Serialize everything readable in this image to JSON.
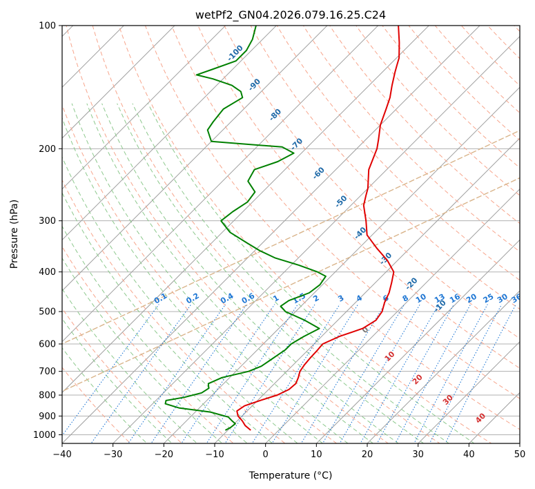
{
  "chart_data": {
    "type": "line",
    "chart_kind": "skew-t log-p",
    "title": "wetPf2_GN04.2026.079.16.25.C24",
    "xlabel": "Temperature (°C)",
    "ylabel": "Pressure (hPa)",
    "xlim": [
      -40,
      50
    ],
    "ylim": [
      1050,
      100
    ],
    "y_scale": "log",
    "grid": true,
    "x_ticks": [
      -40,
      -30,
      -20,
      -10,
      0,
      10,
      20,
      30,
      40,
      50
    ],
    "y_ticks": [
      100,
      200,
      300,
      400,
      500,
      600,
      700,
      800,
      900,
      1000
    ],
    "x_tick_labels": [
      "−40",
      "−30",
      "−20",
      "−10",
      "0",
      "10",
      "20",
      "30",
      "40",
      "50"
    ],
    "y_tick_labels": [
      "100",
      "200",
      "300",
      "400",
      "500",
      "600",
      "700",
      "800",
      "900",
      "1000"
    ],
    "colors": {
      "temperature": "#e00000",
      "dewpoint": "#008000",
      "isotherm": "#a0a0a0",
      "dry_adiabat": "#f7a58c",
      "moist_adiabat": "#8cc88c",
      "mixing_ratio": "#1f77d4",
      "isohume_labels": "#1f6aa8",
      "theta_labels": "#d43030",
      "aux_curve": "#d9b48a"
    },
    "series": [
      {
        "key": "temperature",
        "pressure": [
          975,
          950,
          925,
          900,
          875,
          850,
          825,
          800,
          775,
          750,
          725,
          700,
          675,
          650,
          625,
          600,
          575,
          550,
          525,
          500,
          475,
          450,
          425,
          400,
          375,
          350,
          325,
          300,
          275,
          260,
          250,
          225,
          200,
          190,
          175,
          160,
          150,
          140,
          130,
          125,
          120,
          110,
          100
        ],
        "temperature": [
          -5.5,
          -7.5,
          -9.0,
          -10.8,
          -12.0,
          -11.5,
          -9.5,
          -7.2,
          -6.0,
          -5.8,
          -6.5,
          -7.4,
          -7.8,
          -8.0,
          -8.1,
          -8.3,
          -6.5,
          -3.5,
          -2.5,
          -3.0,
          -4.3,
          -5.3,
          -6.8,
          -8.5,
          -12.0,
          -16.5,
          -21.0,
          -24.0,
          -27.5,
          -29.0,
          -30.0,
          -33.5,
          -36.0,
          -37.5,
          -40.0,
          -42.0,
          -43.5,
          -45.5,
          -47.5,
          -48.5,
          -49.5,
          -52.5,
          -56.0
        ]
      },
      {
        "key": "dewpoint",
        "pressure": [
          975,
          960,
          940,
          925,
          905,
          880,
          860,
          840,
          825,
          810,
          790,
          770,
          750,
          725,
          700,
          680,
          660,
          640,
          620,
          600,
          575,
          550,
          525,
          500,
          485,
          470,
          450,
          430,
          410,
          400,
          385,
          370,
          355,
          340,
          320,
          300,
          285,
          270,
          255,
          240,
          225,
          215,
          205,
          198,
          192,
          180,
          172,
          160,
          150,
          145,
          140,
          135,
          132,
          128,
          122,
          115,
          108,
          100
        ],
        "temperature": [
          -10.5,
          -10.0,
          -9.8,
          -11.0,
          -12.5,
          -17.0,
          -24.0,
          -27.5,
          -28.0,
          -25.0,
          -22.5,
          -22.0,
          -23.0,
          -21.5,
          -17.5,
          -16.0,
          -15.5,
          -15.0,
          -14.5,
          -14.5,
          -13.5,
          -12.0,
          -16.5,
          -22.0,
          -24.0,
          -23.5,
          -21.0,
          -20.5,
          -21.0,
          -23.5,
          -28.5,
          -34.5,
          -39.0,
          -43.0,
          -48.5,
          -52.5,
          -52.0,
          -51.0,
          -51.5,
          -55.0,
          -56.0,
          -53.0,
          -51.5,
          -55.0,
          -70.0,
          -73.0,
          -73.5,
          -74.0,
          -72.5,
          -74.0,
          -77.0,
          -82.0,
          -86.0,
          -84.0,
          -81.0,
          -81.0,
          -82.0,
          -84.0
        ]
      }
    ],
    "isohume_labels": [
      "-100",
      "-90",
      "-80",
      "-70",
      "-60",
      "-50",
      "-40",
      "-30",
      "-20",
      "-10"
    ],
    "mixing_ratio_labels": [
      "0.1",
      "0.2",
      "0.4",
      "0.6",
      "1",
      "1.5",
      "2",
      "3",
      "4",
      "6",
      "8",
      "10",
      "13",
      "16",
      "20",
      "25",
      "30",
      "36"
    ],
    "theta_labels": [
      "0",
      "10",
      "20",
      "30",
      "40"
    ]
  }
}
